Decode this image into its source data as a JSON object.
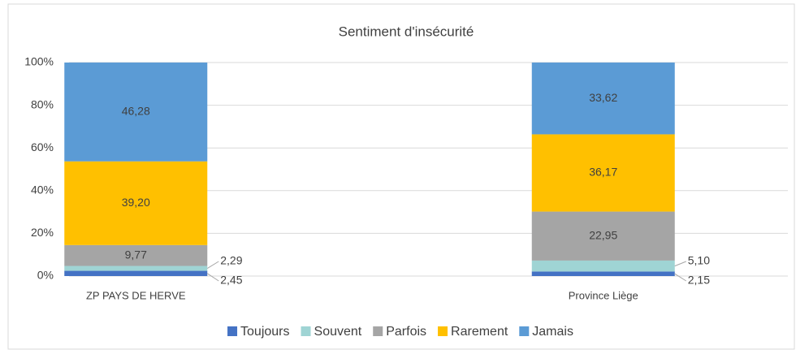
{
  "chart_data": {
    "type": "stacked_bar_100",
    "title": "Sentiment d'insécurité",
    "categories": [
      "ZP PAYS DE HERVE",
      "Province Liège"
    ],
    "series": [
      {
        "name": "Toujours",
        "color": "#4472c4",
        "values": [
          2.45,
          2.15
        ],
        "value_labels": [
          "2,45",
          "2,15"
        ]
      },
      {
        "name": "Souvent",
        "color": "#9fd4d4",
        "values": [
          2.29,
          5.1
        ],
        "value_labels": [
          "2,29",
          "5,10"
        ]
      },
      {
        "name": "Parfois",
        "color": "#a5a5a5",
        "values": [
          9.77,
          22.95
        ],
        "value_labels": [
          "9,77",
          "22,95"
        ]
      },
      {
        "name": "Rarement",
        "color": "#ffc000",
        "values": [
          39.2,
          36.17
        ],
        "value_labels": [
          "39,20",
          "36,17"
        ]
      },
      {
        "name": "Jamais",
        "color": "#5b9bd5",
        "values": [
          46.28,
          33.62
        ],
        "value_labels": [
          "46,28",
          "33,62"
        ]
      }
    ],
    "ylim": [
      0,
      100
    ],
    "yticks": [
      {
        "value": 0,
        "label": "0%"
      },
      {
        "value": 20,
        "label": "20%"
      },
      {
        "value": 40,
        "label": "40%"
      },
      {
        "value": 60,
        "label": "60%"
      },
      {
        "value": 80,
        "label": "80%"
      },
      {
        "value": 100,
        "label": "100%"
      }
    ],
    "grid": true,
    "legend": "bottom"
  }
}
